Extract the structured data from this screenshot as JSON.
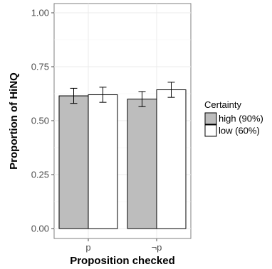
{
  "chart_data": {
    "type": "bar",
    "categories": [
      "p",
      "¬p"
    ],
    "series": [
      {
        "name": "high (90%)",
        "color": "#bdbdbd",
        "values": [
          0.615,
          0.6
        ],
        "err_low": [
          0.58,
          0.565
        ],
        "err_high": [
          0.65,
          0.635
        ]
      },
      {
        "name": "low (60%)",
        "color": "#ffffff",
        "values": [
          0.62,
          0.643
        ],
        "err_low": [
          0.585,
          0.608
        ],
        "err_high": [
          0.655,
          0.678
        ]
      }
    ],
    "xlabel": "Proposition checked",
    "ylabel": "Proportion of HiNQ",
    "ylim": [
      0,
      1
    ],
    "yticks": [
      "0.00",
      "0.25",
      "0.50",
      "0.75",
      "1.00"
    ],
    "legend_title": "Certainty",
    "legend_position": "right",
    "grid": true
  }
}
